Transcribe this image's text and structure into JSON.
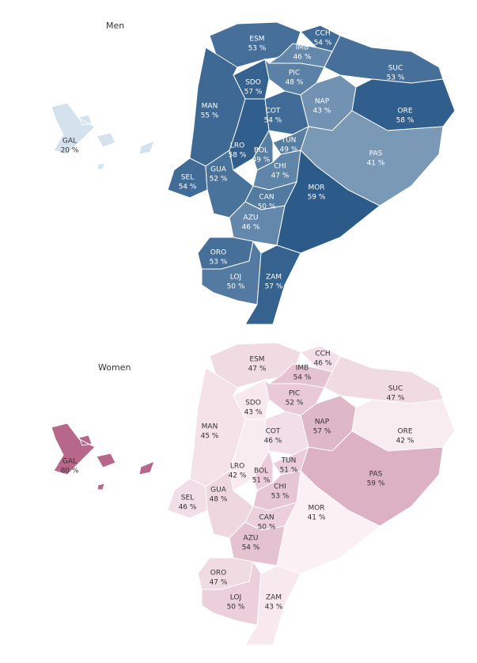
{
  "maps": [
    {
      "title": "Men",
      "color_low": "#d3e2ec",
      "color_high": "#2c5b8a",
      "regions": [
        {
          "code": "ESM",
          "label": "53 %",
          "value": 53
        },
        {
          "code": "CCH",
          "label": "54 %",
          "value": 54
        },
        {
          "code": "IMB",
          "label": "46 %",
          "value": 46
        },
        {
          "code": "SUC",
          "label": "53 %",
          "value": 53
        },
        {
          "code": "PIC",
          "label": "48 %",
          "value": 48
        },
        {
          "code": "SDO",
          "label": "57 %",
          "value": 57
        },
        {
          "code": "MAN",
          "label": "55 %",
          "value": 55
        },
        {
          "code": "NAP",
          "label": "43 %",
          "value": 43
        },
        {
          "code": "ORE",
          "label": "58 %",
          "value": 58
        },
        {
          "code": "COT",
          "label": "54 %",
          "value": 54
        },
        {
          "code": "LRO",
          "label": "58 %",
          "value": 58
        },
        {
          "code": "BOL",
          "label": "49 %",
          "value": 49
        },
        {
          "code": "TUN",
          "label": "49 %",
          "value": 49
        },
        {
          "code": "CHI",
          "label": "47 %",
          "value": 47
        },
        {
          "code": "PAS",
          "label": "41 %",
          "value": 41
        },
        {
          "code": "SEL",
          "label": "54 %",
          "value": 54
        },
        {
          "code": "GUA",
          "label": "52 %",
          "value": 52
        },
        {
          "code": "MOR",
          "label": "59 %",
          "value": 59
        },
        {
          "code": "CAN",
          "label": "50 %",
          "value": 50
        },
        {
          "code": "AZU",
          "label": "46 %",
          "value": 46
        },
        {
          "code": "ORO",
          "label": "53 %",
          "value": 53
        },
        {
          "code": "LOJ",
          "label": "50 %",
          "value": 50
        },
        {
          "code": "ZAM",
          "label": "57 %",
          "value": 57
        },
        {
          "code": "GAL",
          "label": "20 %",
          "value": 20
        }
      ]
    },
    {
      "title": "Women",
      "color_low": "#fbf0f3",
      "color_high": "#b7678a",
      "regions": [
        {
          "code": "ESM",
          "label": "47 %",
          "value": 47
        },
        {
          "code": "CCH",
          "label": "46 %",
          "value": 46
        },
        {
          "code": "IMB",
          "label": "54 %",
          "value": 54
        },
        {
          "code": "SUC",
          "label": "47 %",
          "value": 47
        },
        {
          "code": "PIC",
          "label": "52 %",
          "value": 52
        },
        {
          "code": "SDO",
          "label": "43 %",
          "value": 43
        },
        {
          "code": "MAN",
          "label": "45 %",
          "value": 45
        },
        {
          "code": "NAP",
          "label": "57 %",
          "value": 57
        },
        {
          "code": "ORE",
          "label": "42 %",
          "value": 42
        },
        {
          "code": "COT",
          "label": "46 %",
          "value": 46
        },
        {
          "code": "LRO",
          "label": "42 %",
          "value": 42
        },
        {
          "code": "BOL",
          "label": "51 %",
          "value": 51
        },
        {
          "code": "TUN",
          "label": "51 %",
          "value": 51
        },
        {
          "code": "CHI",
          "label": "53 %",
          "value": 53
        },
        {
          "code": "PAS",
          "label": "59 %",
          "value": 59
        },
        {
          "code": "SEL",
          "label": "46 %",
          "value": 46
        },
        {
          "code": "GUA",
          "label": "48 %",
          "value": 48
        },
        {
          "code": "MOR",
          "label": "41 %",
          "value": 41
        },
        {
          "code": "CAN",
          "label": "50 %",
          "value": 50
        },
        {
          "code": "AZU",
          "label": "54 %",
          "value": 54
        },
        {
          "code": "ORO",
          "label": "47 %",
          "value": 47
        },
        {
          "code": "LOJ",
          "label": "50 %",
          "value": 50
        },
        {
          "code": "ZAM",
          "label": "43 %",
          "value": 43
        },
        {
          "code": "GAL",
          "label": "80 %",
          "value": 80
        }
      ]
    }
  ]
}
